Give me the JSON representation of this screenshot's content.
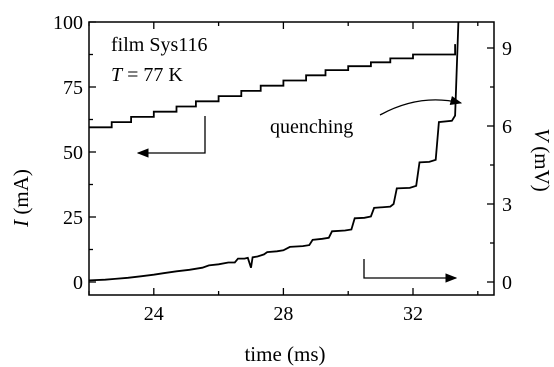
{
  "chart_data": {
    "type": "line",
    "xlabel": "time (ms)",
    "ylabel_left": {
      "italic": "I",
      "rest": " (mA)"
    },
    "ylabel_right": {
      "italic": "V",
      "rest": " (mV)"
    },
    "xlim": [
      22,
      34.5
    ],
    "ylim_left": [
      -5,
      100
    ],
    "ylim_right": [
      -0.5,
      10
    ],
    "x_ticks": [
      24,
      28,
      32
    ],
    "y_left_ticks": [
      0,
      25,
      50,
      75,
      100
    ],
    "y_right_ticks": [
      0,
      3,
      6,
      9
    ],
    "annotations": {
      "film": "film Sys116",
      "temperature": {
        "italic": "T",
        "rest": " = 77 K"
      },
      "quenching": "quenching"
    },
    "series": [
      {
        "axis": "left",
        "points": [
          [
            22.0,
            59.5
          ],
          [
            22.7,
            59.5
          ],
          [
            22.7,
            61.5
          ],
          [
            23.3,
            61.5
          ],
          [
            23.3,
            63.5
          ],
          [
            24.0,
            63.5
          ],
          [
            24.0,
            65.5
          ],
          [
            24.7,
            65.5
          ],
          [
            24.7,
            67.5
          ],
          [
            25.3,
            67.5
          ],
          [
            25.3,
            69.5
          ],
          [
            26.0,
            69.5
          ],
          [
            26.0,
            71.5
          ],
          [
            26.7,
            71.5
          ],
          [
            26.7,
            73.5
          ],
          [
            27.3,
            73.5
          ],
          [
            27.3,
            75.5
          ],
          [
            28.0,
            75.5
          ],
          [
            28.0,
            77.5
          ],
          [
            28.7,
            77.5
          ],
          [
            28.7,
            79.5
          ],
          [
            29.3,
            79.5
          ],
          [
            29.3,
            81.5
          ],
          [
            30.0,
            81.5
          ],
          [
            30.0,
            83.0
          ],
          [
            30.7,
            83.0
          ],
          [
            30.7,
            84.5
          ],
          [
            31.3,
            84.5
          ],
          [
            31.3,
            86.0
          ],
          [
            32.0,
            86.0
          ],
          [
            32.0,
            87.5
          ],
          [
            33.3,
            87.5
          ],
          [
            33.3,
            91.5
          ]
        ]
      },
      {
        "axis": "right",
        "points": [
          [
            22.0,
            0.06
          ],
          [
            22.5,
            0.09
          ],
          [
            22.8,
            0.12
          ],
          [
            23.2,
            0.16
          ],
          [
            23.6,
            0.22
          ],
          [
            24.0,
            0.28
          ],
          [
            24.3,
            0.34
          ],
          [
            24.7,
            0.41
          ],
          [
            25.1,
            0.47
          ],
          [
            25.5,
            0.55
          ],
          [
            25.7,
            0.64
          ],
          [
            26.0,
            0.68
          ],
          [
            26.3,
            0.75
          ],
          [
            26.5,
            0.75
          ],
          [
            26.6,
            0.9
          ],
          [
            26.8,
            0.9
          ],
          [
            26.9,
            0.93
          ],
          [
            27.0,
            0.55
          ],
          [
            27.05,
            0.95
          ],
          [
            27.2,
            0.98
          ],
          [
            27.4,
            1.06
          ],
          [
            27.5,
            1.15
          ],
          [
            27.8,
            1.18
          ],
          [
            28.0,
            1.22
          ],
          [
            28.2,
            1.35
          ],
          [
            28.6,
            1.38
          ],
          [
            28.8,
            1.42
          ],
          [
            28.9,
            1.62
          ],
          [
            29.2,
            1.66
          ],
          [
            29.4,
            1.7
          ],
          [
            29.5,
            1.95
          ],
          [
            29.9,
            1.98
          ],
          [
            30.1,
            2.02
          ],
          [
            30.2,
            2.45
          ],
          [
            30.5,
            2.47
          ],
          [
            30.7,
            2.52
          ],
          [
            30.8,
            2.85
          ],
          [
            31.3,
            2.9
          ],
          [
            31.4,
            3.0
          ],
          [
            31.5,
            3.6
          ],
          [
            31.9,
            3.62
          ],
          [
            32.1,
            3.7
          ],
          [
            32.2,
            4.6
          ],
          [
            32.5,
            4.62
          ],
          [
            32.7,
            4.7
          ],
          [
            32.8,
            6.15
          ],
          [
            33.2,
            6.2
          ],
          [
            33.3,
            6.4
          ],
          [
            33.4,
            10.0
          ]
        ]
      }
    ]
  }
}
